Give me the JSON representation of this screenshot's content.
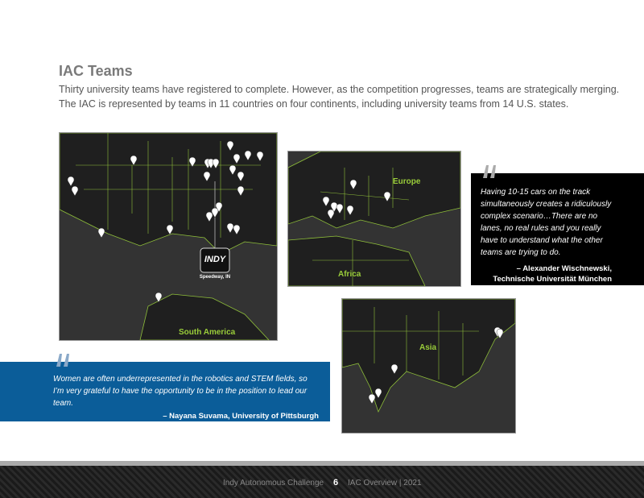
{
  "header": {
    "title": "IAC Teams",
    "body": [
      "Thirty university teams have registered to complete. However, as the competition progresses, teams are strategically merging.",
      "The IAC is represented by teams in 11 countries on four continents, including university teams from 14 U.S. states."
    ]
  },
  "maps": {
    "north_america": {
      "logo": "INDY",
      "logo_location": "Speedway, IN",
      "region": "South America"
    },
    "europe": {
      "regions": [
        "Europe",
        "Africa"
      ]
    },
    "asia": {
      "region": "Asia"
    }
  },
  "quotes": [
    {
      "text": "Having 10-15 cars on the track simultaneously creates a ridiculously complex scenario…There are no lanes, no real rules and you really have to understand what the other teams are trying to do.",
      "attribution": [
        "– Alexander Wischnewski,",
        "Technische Universität München"
      ]
    },
    {
      "text": "Women are often underrepresented in the robotics and STEM fields, so I’m very grateful to have the opportunity to be in the position to lead our team.",
      "attribution": [
        "– Nayana Suvama, University of Pittsburgh"
      ]
    }
  ],
  "footer": {
    "left": "Indy Autonomous Challenge",
    "page": "6",
    "right": "IAC Overview | 2021"
  }
}
